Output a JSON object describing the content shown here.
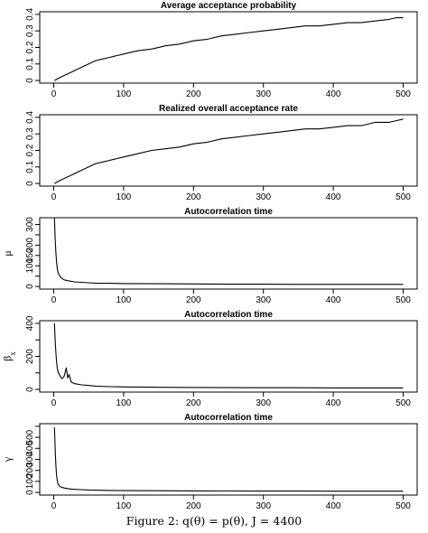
{
  "caption": "Figure 2: q(θ) = p(θ), J = 4400",
  "chart_data": [
    {
      "type": "line",
      "title": "Average acceptance probability",
      "ylabel": "",
      "xlim": [
        0,
        500
      ],
      "ylim": [
        0,
        0.4
      ],
      "xticks": [
        0,
        100,
        200,
        300,
        400,
        500
      ],
      "yticks": [
        0,
        0.1,
        0.2,
        0.3,
        0.4
      ],
      "yticklabels": [
        "0",
        "0.1",
        "0.2",
        "0.3",
        "0.4"
      ],
      "x": [
        1,
        10,
        20,
        30,
        40,
        50,
        60,
        70,
        80,
        90,
        100,
        120,
        140,
        160,
        180,
        200,
        220,
        240,
        260,
        280,
        300,
        320,
        340,
        360,
        380,
        400,
        420,
        440,
        460,
        480,
        490,
        500
      ],
      "y": [
        0.0,
        0.02,
        0.04,
        0.06,
        0.08,
        0.1,
        0.12,
        0.13,
        0.14,
        0.15,
        0.16,
        0.18,
        0.19,
        0.21,
        0.22,
        0.24,
        0.25,
        0.27,
        0.28,
        0.29,
        0.3,
        0.31,
        0.32,
        0.33,
        0.33,
        0.34,
        0.35,
        0.35,
        0.36,
        0.37,
        0.38,
        0.38
      ]
    },
    {
      "type": "line",
      "title": "Realized overall acceptance rate",
      "ylabel": "",
      "xlim": [
        0,
        500
      ],
      "ylim": [
        0,
        0.4
      ],
      "xticks": [
        0,
        100,
        200,
        300,
        400,
        500
      ],
      "yticks": [
        0,
        0.1,
        0.2,
        0.3,
        0.4
      ],
      "yticklabels": [
        "0",
        "0.1",
        "0.2",
        "0.3",
        "0.4"
      ],
      "x": [
        1,
        10,
        20,
        30,
        40,
        50,
        60,
        70,
        80,
        90,
        100,
        120,
        140,
        160,
        180,
        200,
        220,
        240,
        260,
        280,
        300,
        320,
        340,
        360,
        380,
        400,
        420,
        440,
        460,
        480,
        490,
        500
      ],
      "y": [
        0.0,
        0.02,
        0.04,
        0.06,
        0.08,
        0.1,
        0.12,
        0.13,
        0.14,
        0.15,
        0.16,
        0.18,
        0.2,
        0.21,
        0.22,
        0.24,
        0.25,
        0.27,
        0.28,
        0.29,
        0.3,
        0.31,
        0.32,
        0.33,
        0.33,
        0.34,
        0.35,
        0.35,
        0.37,
        0.37,
        0.38,
        0.39
      ]
    },
    {
      "type": "line",
      "title": "Autocorrelation time",
      "ylabel": "μ",
      "xlim": [
        0,
        500
      ],
      "ylim": [
        0,
        320
      ],
      "xticks": [
        0,
        100,
        200,
        300,
        400,
        500
      ],
      "yticks": [
        0,
        50,
        100,
        150,
        200,
        250,
        300
      ],
      "yticklabels": [
        "0",
        "",
        "100",
        "150",
        "200",
        "",
        "300"
      ],
      "x": [
        1,
        2,
        3,
        4,
        5,
        6,
        8,
        10,
        12,
        15,
        20,
        25,
        30,
        40,
        50,
        60,
        80,
        100,
        150,
        200,
        250,
        300,
        350,
        400,
        450,
        500
      ],
      "y": [
        330,
        240,
        170,
        120,
        90,
        70,
        55,
        45,
        38,
        32,
        28,
        25,
        22,
        20,
        18,
        16,
        15,
        14,
        13,
        12,
        11,
        11,
        10,
        10,
        10,
        10
      ]
    },
    {
      "type": "line",
      "title": "Autocorrelation time",
      "ylabel": "β",
      "ylabel_sub": "x",
      "xlim": [
        0,
        500
      ],
      "ylim": [
        0,
        400
      ],
      "xticks": [
        0,
        100,
        200,
        300,
        400,
        500
      ],
      "yticks": [
        0,
        100,
        200,
        300,
        400
      ],
      "yticklabels": [
        "0",
        "",
        "200",
        "",
        "400"
      ],
      "x": [
        1,
        2,
        3,
        4,
        5,
        6,
        8,
        10,
        12,
        15,
        18,
        20,
        22,
        25,
        30,
        40,
        50,
        60,
        80,
        100,
        150,
        200,
        250,
        300,
        350,
        400,
        450,
        500
      ],
      "y": [
        400,
        310,
        230,
        170,
        130,
        110,
        90,
        75,
        65,
        80,
        130,
        70,
        90,
        45,
        35,
        28,
        24,
        20,
        17,
        15,
        13,
        12,
        11,
        10,
        10,
        9,
        9,
        9
      ]
    },
    {
      "type": "line",
      "title": "Autocorrelation time",
      "ylabel": "γ",
      "xlim": [
        0,
        500
      ],
      "ylim": [
        0,
        600
      ],
      "xticks": [
        0,
        100,
        200,
        300,
        400,
        500
      ],
      "yticks": [
        0,
        100,
        200,
        300,
        400,
        500,
        600
      ],
      "yticklabels": [
        "0",
        "100",
        "200",
        "300",
        "400",
        "500",
        ""
      ],
      "x": [
        1,
        2,
        3,
        4,
        5,
        6,
        8,
        10,
        15,
        20,
        25,
        30,
        40,
        50,
        60,
        80,
        100,
        150,
        200,
        250,
        300,
        350,
        400,
        450,
        500
      ],
      "y": [
        590,
        420,
        260,
        160,
        110,
        80,
        60,
        50,
        40,
        35,
        30,
        28,
        25,
        22,
        20,
        18,
        16,
        15,
        14,
        13,
        12,
        12,
        11,
        11,
        11
      ]
    }
  ]
}
